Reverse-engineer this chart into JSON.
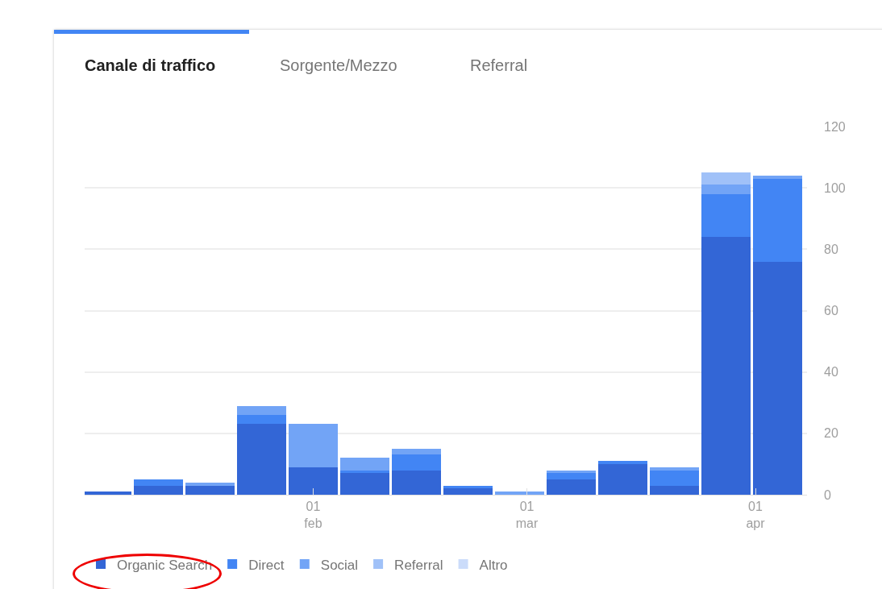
{
  "chart_data": {
    "type": "bar",
    "stacked": true,
    "annotations": [
      "Canale di traffico",
      "Sorgente/Mezzo",
      "Referral"
    ],
    "x": [
      "--01-04",
      "--01-11",
      "--01-18",
      "--01-25",
      "--02-01",
      "--02-08",
      "--02-15",
      "--02-22",
      "--02-29",
      "--03-07",
      "--03-14",
      "--03-21",
      "--03-28",
      "--04-04"
    ],
    "series": [
      {
        "name": "Organic Search",
        "color": "#3366d6",
        "values": [
          1,
          3,
          3,
          23,
          9,
          7,
          8,
          2,
          0,
          5,
          10,
          3,
          84,
          76
        ]
      },
      {
        "name": "Direct",
        "color": "#4285f4",
        "values": [
          0,
          2,
          0,
          3,
          0,
          1,
          5,
          1,
          0,
          2,
          1,
          5,
          14,
          27
        ]
      },
      {
        "name": "Social",
        "color": "#72a4f6",
        "values": [
          0,
          0,
          1,
          3,
          14,
          4,
          2,
          0,
          1,
          1,
          0,
          1,
          3,
          1
        ]
      },
      {
        "name": "Referral",
        "color": "#a0c1f8",
        "values": [
          0,
          0,
          0,
          0,
          0,
          0,
          0,
          0,
          0,
          0,
          0,
          0,
          4,
          0
        ]
      },
      {
        "name": "Altro",
        "color": "#cbdcfa",
        "values": [
          0,
          0,
          0,
          0,
          0,
          0,
          0,
          0,
          0,
          0,
          0,
          0,
          0,
          0
        ]
      }
    ],
    "xlim": [
      "--01-01",
      "--04-08"
    ],
    "xticks": [
      {
        "value": "--02-01",
        "label": "01\nfeb"
      },
      {
        "value": "--03-01",
        "label": "01\nmar"
      },
      {
        "value": "--04-01",
        "label": "01\napr"
      }
    ],
    "ylim": [
      0,
      120
    ],
    "yticks": [
      0,
      20,
      40,
      60,
      80,
      100,
      120
    ],
    "grid": "y",
    "legend": "bottom left"
  }
}
